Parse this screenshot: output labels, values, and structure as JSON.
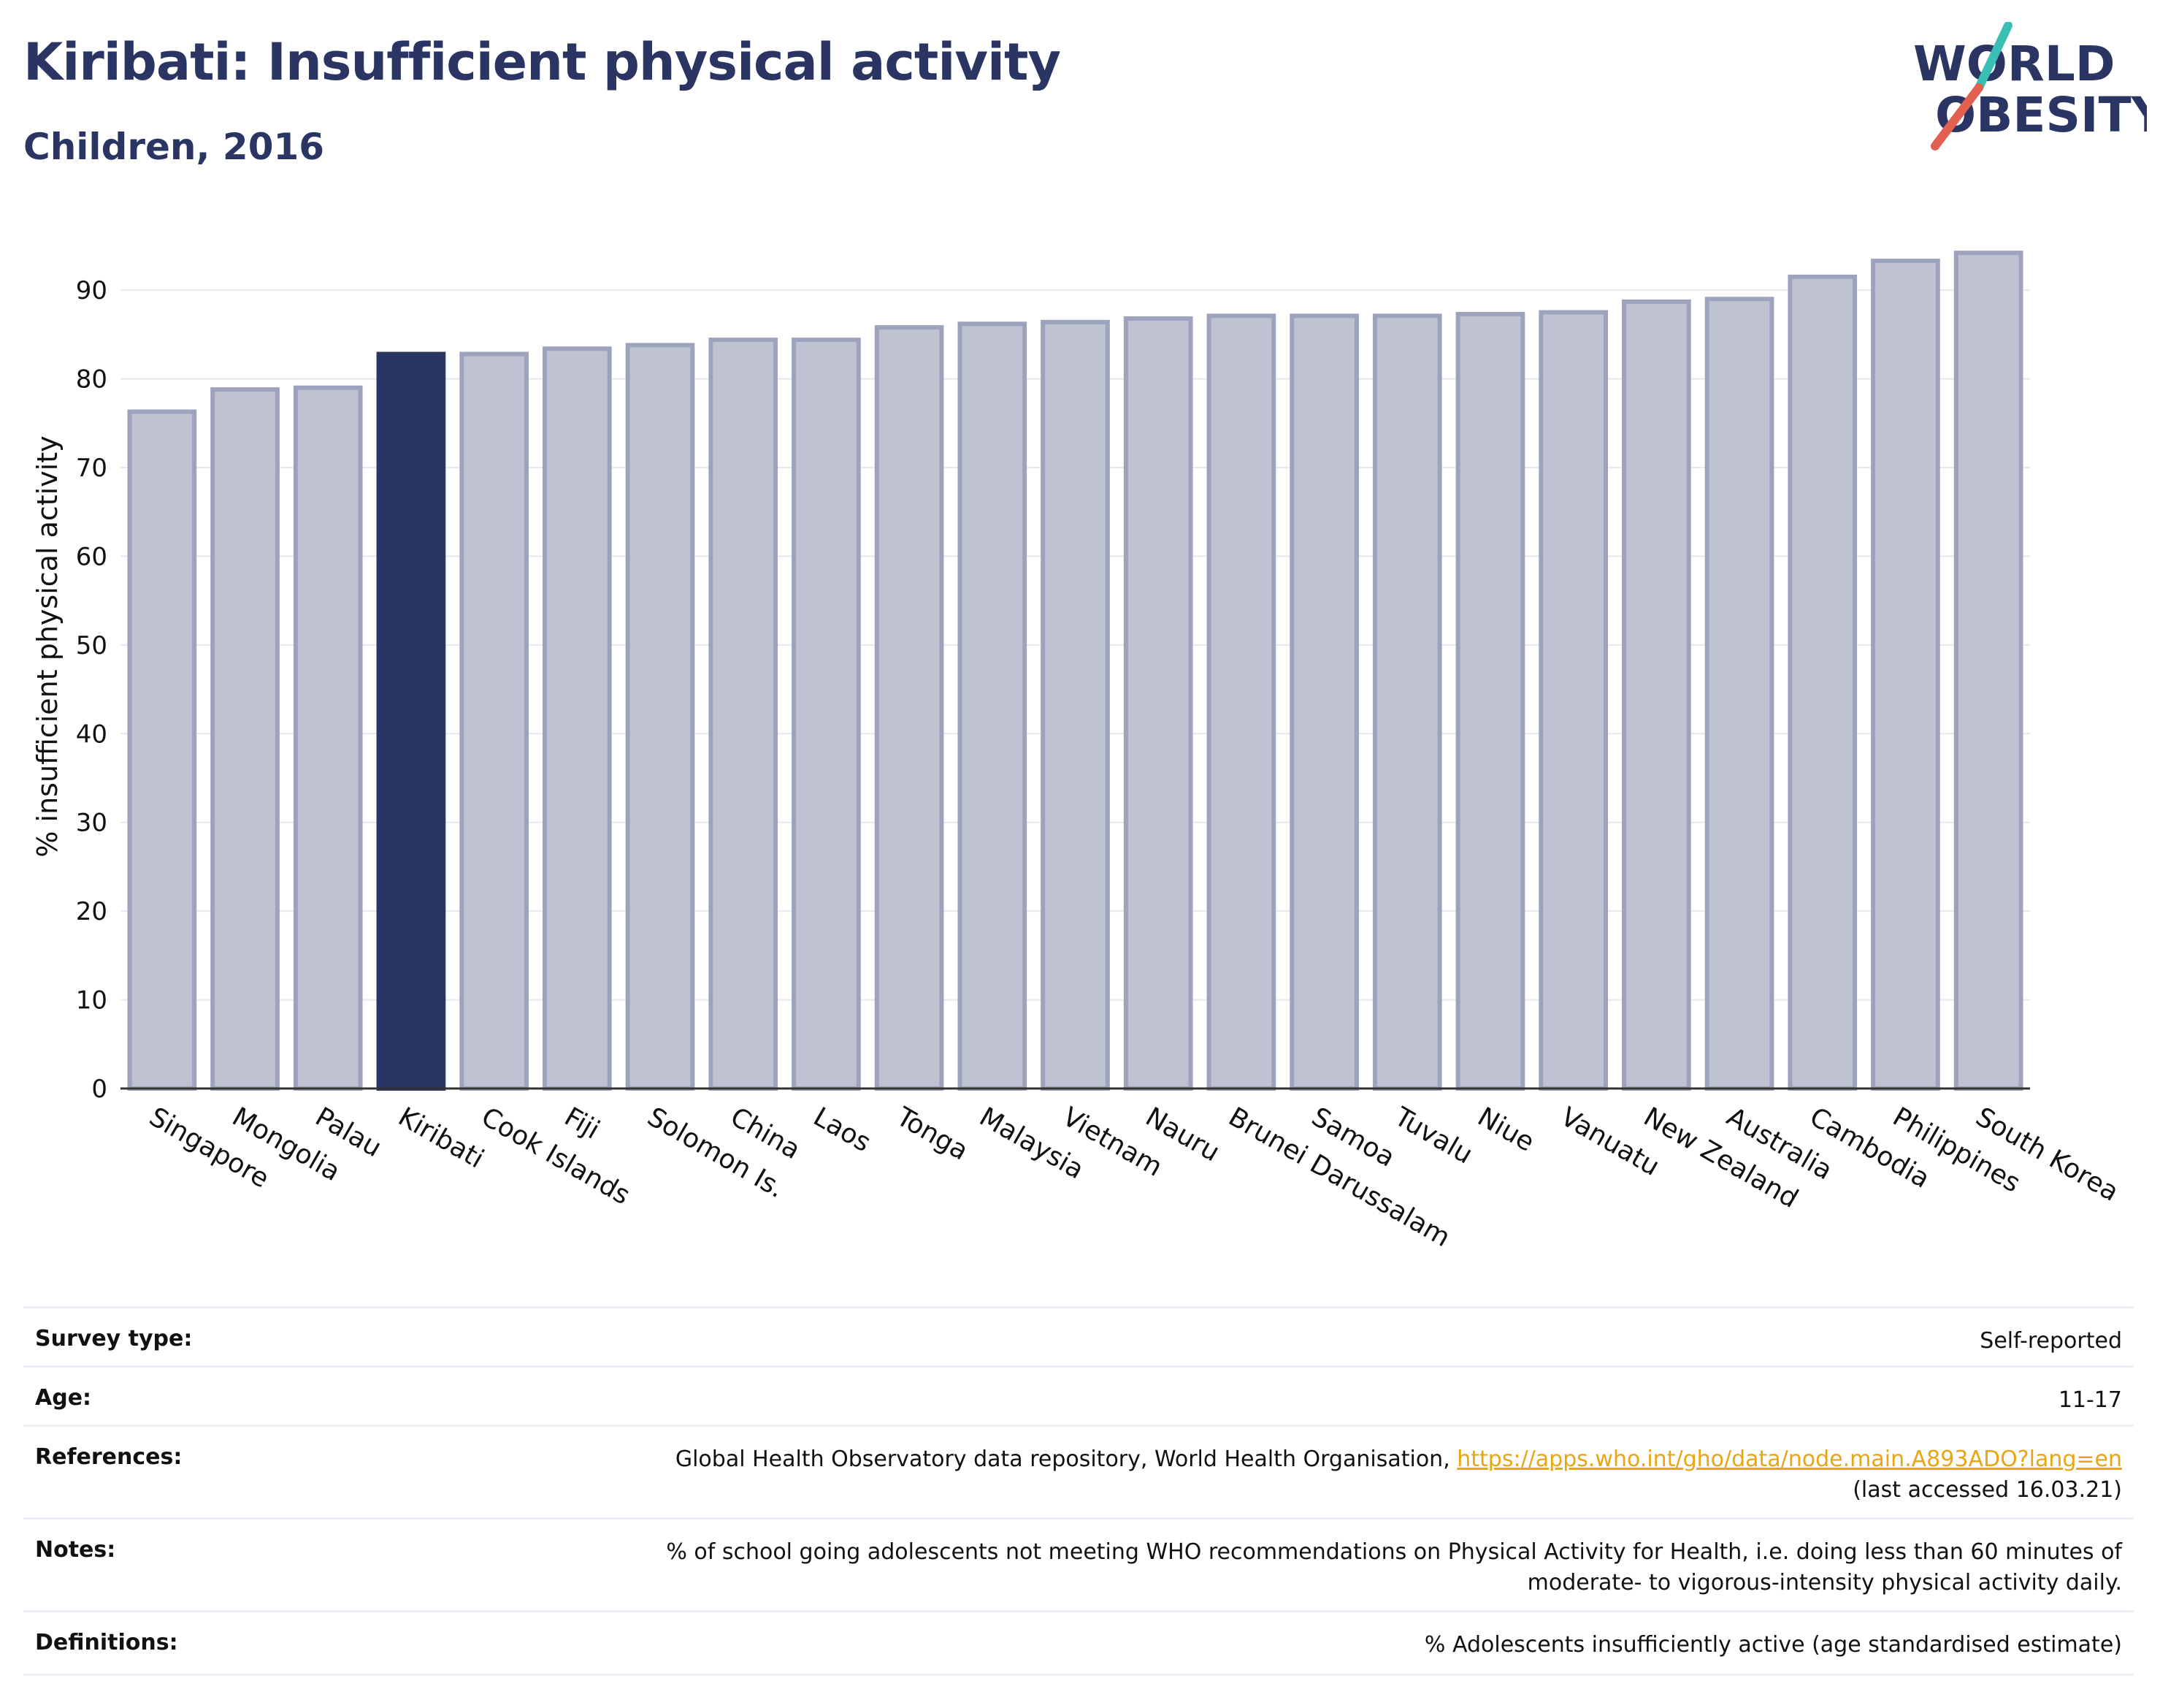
{
  "header": {
    "title": "Kiribati: Insufficient physical activity",
    "subtitle": "Children, 2016"
  },
  "logo": {
    "line1": "WORLD",
    "line2": "OBESITY",
    "icon": "world-obesity-logo"
  },
  "colors": {
    "highlight": "#2a3563",
    "bar": "#bfc2d0",
    "bar_edge": "#9ea3bd",
    "title": "#2a3563",
    "link": "#e8a514"
  },
  "chart_data": {
    "type": "bar",
    "categories": [
      "Singapore",
      "Mongolia",
      "Palau",
      "Kiribati",
      "Cook Islands",
      "Fiji",
      "Solomon Is.",
      "China",
      "Laos",
      "Tonga",
      "Malaysia",
      "Vietnam",
      "Nauru",
      "Brunei Darussalam",
      "Samoa",
      "Tuvalu",
      "Niue",
      "Vanuatu",
      "New Zealand",
      "Australia",
      "Cambodia",
      "Philippines",
      "South Korea"
    ],
    "values": [
      76.3,
      78.8,
      79.0,
      82.8,
      82.8,
      83.4,
      83.8,
      84.4,
      84.4,
      85.8,
      86.2,
      86.4,
      86.8,
      87.1,
      87.1,
      87.1,
      87.3,
      87.5,
      88.7,
      89.0,
      91.5,
      93.3,
      94.2
    ],
    "highlight": "Kiribati",
    "ylabel": "% insufficient physical activity",
    "yticks": [
      0,
      10,
      20,
      30,
      40,
      50,
      60,
      70,
      80,
      90
    ],
    "ylim": [
      0,
      98
    ],
    "grid": true
  },
  "meta": {
    "survey_label": "Survey type:",
    "survey_value": "Self-reported",
    "age_label": "Age:",
    "age_value": "11-17",
    "ref_label": "References:",
    "ref_text": "Global Health Observatory data repository, World Health Organisation, ",
    "ref_link": "https://apps.who.int/gho/data/node.main.A893ADO?lang=en",
    "ref_accessed": "(last accessed 16.03.21)",
    "notes_label": "Notes:",
    "notes_line1": "% of school going adolescents not meeting WHO recommendations on Physical Activity for Health, i.e. doing less than 60 minutes of",
    "notes_line2": "moderate- to vigorous-intensity physical activity daily.",
    "def_label": "Definitions:",
    "def_value": "% Adolescents insufficiently active (age standardised estimate)"
  }
}
